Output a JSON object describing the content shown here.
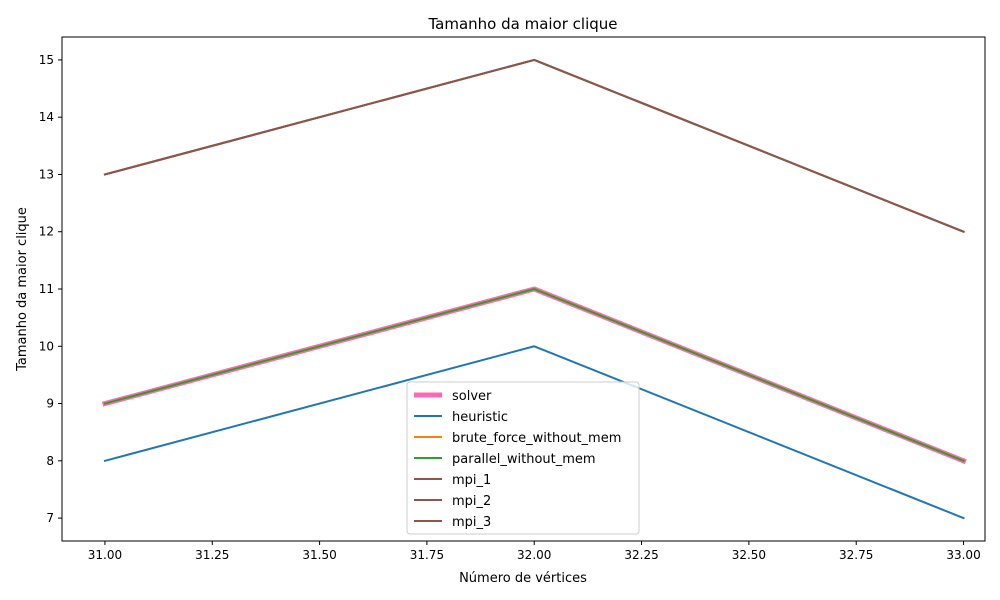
{
  "chart_data": {
    "type": "line",
    "title": "Tamanho da maior clique",
    "xlabel": "Número de vértices",
    "ylabel": "Tamanho da maior clique",
    "x": [
      31,
      32,
      33
    ],
    "xlim": [
      30.9,
      33.05
    ],
    "ylim": [
      6.6,
      15.4
    ],
    "xticks": [
      31.0,
      31.25,
      31.5,
      31.75,
      32.0,
      32.25,
      32.5,
      32.75,
      33.0
    ],
    "xtick_labels": [
      "31.00",
      "31.25",
      "31.50",
      "31.75",
      "32.00",
      "32.25",
      "32.50",
      "32.75",
      "33.00"
    ],
    "yticks": [
      7,
      8,
      9,
      10,
      11,
      12,
      13,
      14,
      15
    ],
    "ytick_labels": [
      "7",
      "8",
      "9",
      "10",
      "11",
      "12",
      "13",
      "14",
      "15"
    ],
    "grid": false,
    "legend_position": "lower-center",
    "series": [
      {
        "name": "solver",
        "values": [
          9,
          11,
          8
        ],
        "color": "#ff69b4",
        "width": 5
      },
      {
        "name": "heuristic",
        "values": [
          8,
          10,
          7
        ],
        "color": "#1f77b4",
        "width": 2
      },
      {
        "name": "brute_force_without_mem",
        "values": [
          9,
          11,
          8
        ],
        "color": "#ff7f0e",
        "width": 2
      },
      {
        "name": "parallel_without_mem",
        "values": [
          9,
          11,
          8
        ],
        "color": "#2ca02c",
        "width": 2
      },
      {
        "name": "mpi_1",
        "values": [
          13,
          15,
          12
        ],
        "color": "#8c564b",
        "width": 2
      },
      {
        "name": "mpi_2",
        "values": [
          13,
          15,
          12
        ],
        "color": "#8c564b",
        "width": 2
      },
      {
        "name": "mpi_3",
        "values": [
          13,
          15,
          12
        ],
        "color": "#8c564b",
        "width": 2
      }
    ]
  }
}
